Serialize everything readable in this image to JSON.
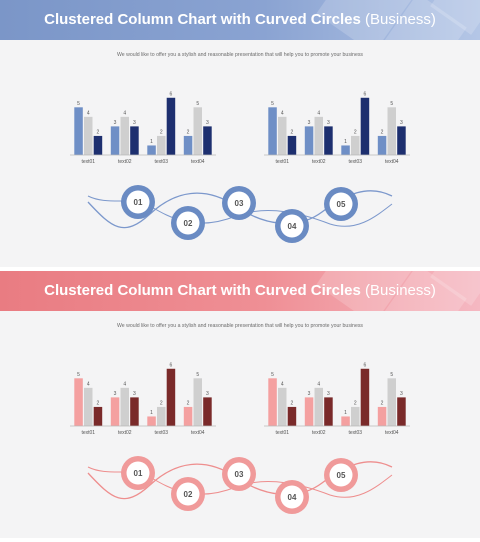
{
  "slides": [
    {
      "id": "blue",
      "title_main": "Clustered Column Chart with Curved Circles",
      "title_paren": "(Business)",
      "subtitle": "We would like to offer you a stylish and reasonable presentation that will help you to promote your business",
      "colors": {
        "primary": "#6f8fc6",
        "light": "#cfcfcf",
        "dark": "#1d2f6f",
        "circle": "#6a8bc3",
        "curve": "#7c98cc"
      },
      "circles": [
        "01",
        "02",
        "03",
        "04",
        "05"
      ]
    },
    {
      "id": "red",
      "title_main": "Clustered Column Chart with Curved Circles",
      "title_paren": "(Business)",
      "subtitle": "We would like to offer you a stylish and reasonable presentation that will help you to promote your business",
      "colors": {
        "primary": "#f4a0a0",
        "light": "#cfcfcf",
        "dark": "#7a2a2a",
        "circle": "#f09a9a",
        "curve": "#ee8e8e"
      },
      "circles": [
        "01",
        "02",
        "03",
        "04",
        "05"
      ]
    }
  ],
  "chart_data": [
    {
      "type": "bar",
      "categories": [
        "text01",
        "text02",
        "text03",
        "text04"
      ],
      "series": [
        {
          "values": [
            5,
            3,
            1,
            2
          ]
        },
        {
          "values": [
            4,
            4,
            2,
            5
          ]
        },
        {
          "values": [
            2,
            3,
            6,
            3
          ]
        }
      ],
      "ylim": [
        0,
        6.5
      ],
      "grid": false
    },
    {
      "type": "bar",
      "categories": [
        "text01",
        "text02",
        "text03",
        "text04"
      ],
      "series": [
        {
          "values": [
            5,
            3,
            1,
            2
          ]
        },
        {
          "values": [
            4,
            4,
            2,
            5
          ]
        },
        {
          "values": [
            2,
            3,
            6,
            3
          ]
        }
      ],
      "ylim": [
        0,
        6.5
      ],
      "grid": false
    },
    {
      "type": "bar",
      "categories": [
        "text01",
        "text02",
        "text03",
        "text04"
      ],
      "series": [
        {
          "values": [
            5,
            3,
            1,
            2
          ]
        },
        {
          "values": [
            4,
            4,
            2,
            5
          ]
        },
        {
          "values": [
            2,
            3,
            6,
            3
          ]
        }
      ],
      "ylim": [
        0,
        6.5
      ],
      "grid": false
    },
    {
      "type": "bar",
      "categories": [
        "text01",
        "text02",
        "text03",
        "text04"
      ],
      "series": [
        {
          "values": [
            5,
            3,
            1,
            2
          ]
        },
        {
          "values": [
            4,
            4,
            2,
            5
          ]
        },
        {
          "values": [
            2,
            3,
            6,
            3
          ]
        }
      ],
      "ylim": [
        0,
        6.5
      ],
      "grid": false
    }
  ]
}
